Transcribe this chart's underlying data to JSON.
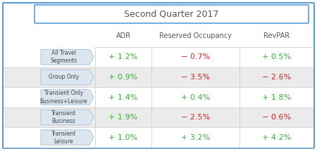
{
  "title": "Second Quarter 2017",
  "col_headers": [
    "ADR",
    "Reserved Occupancy",
    "RevPAR"
  ],
  "rows": [
    {
      "label": "All Travel\nSegments",
      "sign": [
        "+",
        "−",
        "+"
      ],
      "number": [
        "1.2%",
        "0.7%",
        "0.5%"
      ],
      "colors": [
        "#3aaa3a",
        "#cc2222",
        "#3aaa3a"
      ],
      "bg": "#ffffff"
    },
    {
      "label": "Group Only",
      "sign": [
        "+",
        "−",
        "−"
      ],
      "number": [
        "0.9%",
        "3.5%",
        "2.6%"
      ],
      "colors": [
        "#3aaa3a",
        "#cc2222",
        "#cc2222"
      ],
      "bg": "#ebebeb"
    },
    {
      "label": "Transient Only\nBusiness+Leisure",
      "sign": [
        "+",
        "+",
        "+"
      ],
      "number": [
        "1.4%",
        "0.4%",
        "1.8%"
      ],
      "colors": [
        "#3aaa3a",
        "#3aaa3a",
        "#3aaa3a"
      ],
      "bg": "#ffffff"
    },
    {
      "label": "Transient\nBusiness",
      "sign": [
        "+",
        "−",
        "−"
      ],
      "number": [
        "1.9%",
        "2.5%",
        "0.6%"
      ],
      "colors": [
        "#3aaa3a",
        "#cc2222",
        "#cc2222"
      ],
      "bg": "#ebebeb"
    },
    {
      "label": "Transient\nLeisure",
      "sign": [
        "+",
        "+",
        "+"
      ],
      "number": [
        "1.0%",
        "3.2%",
        "4.2%"
      ],
      "colors": [
        "#3aaa3a",
        "#3aaa3a",
        "#3aaa3a"
      ],
      "bg": "#ffffff"
    }
  ],
  "outer_border_color": "#5b9bd5",
  "grid_color": "#c8c8c8",
  "header_text_color": "#555555",
  "label_text_color": "#444444",
  "fig_bg": "#ffffff"
}
